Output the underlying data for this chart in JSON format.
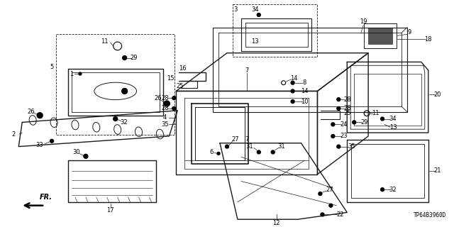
{
  "background_color": "#ffffff",
  "line_color": "#1a1a1a",
  "diagram_ref": "TP64B3960D",
  "fig_width": 6.4,
  "fig_height": 3.2,
  "dpi": 100
}
